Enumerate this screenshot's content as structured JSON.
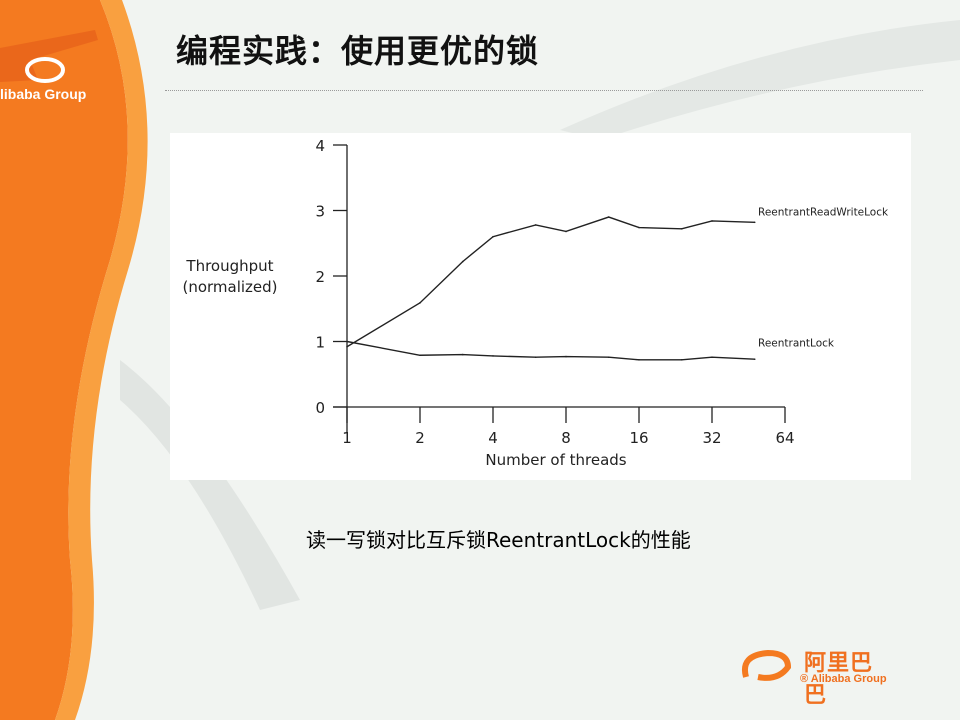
{
  "slide": {
    "title": "编程实践：使用更优的锁",
    "caption": "读一写锁对比互斥锁ReentrantLock的性能",
    "logo_top": "libaba Group",
    "logo_bottom_cn": "阿里巴巴",
    "logo_bottom_en": "® Alibaba Group",
    "accent_color": "#f47a20"
  },
  "chart_data": {
    "type": "line",
    "xlabel": "Number of threads",
    "ylabel": [
      "Throughput",
      "(normalized)"
    ],
    "x_scale": "log2",
    "x_ticks": [
      1,
      2,
      4,
      8,
      16,
      32,
      64
    ],
    "y_ticks": [
      0,
      1,
      2,
      3,
      4
    ],
    "ylim": [
      0,
      4
    ],
    "xlim": [
      1,
      64
    ],
    "grid": false,
    "series": [
      {
        "name": "ReentrantReadWriteLock",
        "x": [
          1,
          2,
          3,
          4,
          6,
          8,
          12,
          16,
          24,
          32,
          48
        ],
        "values": [
          0.92,
          1.59,
          2.22,
          2.6,
          2.78,
          2.68,
          2.9,
          2.74,
          2.72,
          2.84,
          2.82
        ]
      },
      {
        "name": "ReentrantLock",
        "x": [
          1,
          2,
          3,
          4,
          6,
          8,
          12,
          16,
          24,
          32,
          48
        ],
        "values": [
          1.0,
          0.79,
          0.8,
          0.78,
          0.76,
          0.77,
          0.76,
          0.72,
          0.72,
          0.76,
          0.73
        ]
      }
    ]
  }
}
